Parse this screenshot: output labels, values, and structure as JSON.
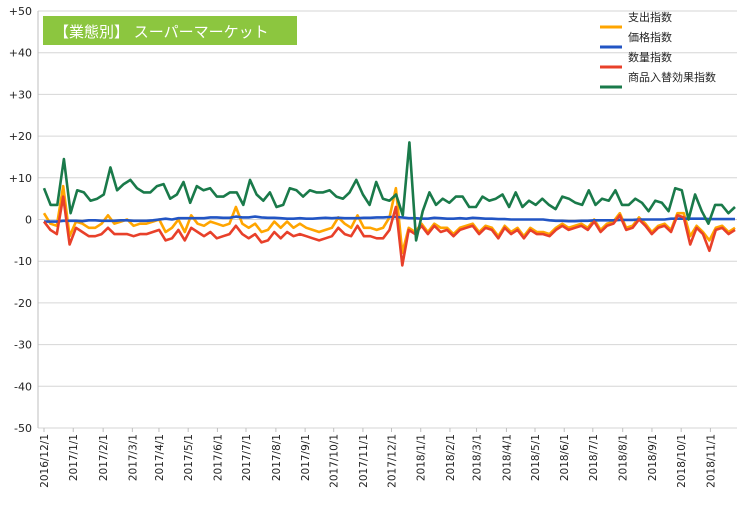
{
  "chart_data": {
    "type": "line",
    "title": "【業態別】 スーパーマーケット",
    "title_bg_color": "#8cc63f",
    "ylim": [
      -50,
      50
    ],
    "yticks": [
      "+50",
      "+40",
      "+30",
      "+20",
      "+10",
      "0",
      "-10",
      "-20",
      "-30",
      "-40",
      "-50"
    ],
    "ytick_values": [
      50,
      40,
      30,
      20,
      10,
      0,
      -10,
      -20,
      -30,
      -40,
      -50
    ],
    "xlabel": "",
    "ylabel": "",
    "x_tick_labels": [
      "2016/12/1",
      "2017/1/1",
      "2017/2/1",
      "2017/3/1",
      "2017/4/1",
      "2017/5/1",
      "2017/6/1",
      "2017/7/1",
      "2017/8/1",
      "2017/9/1",
      "2017/10/1",
      "2017/11/1",
      "2017/12/1",
      "2018/1/1",
      "2018/2/1",
      "2018/3/1",
      "2018/4/1",
      "2018/5/1",
      "2018/6/1",
      "2018/7/1",
      "2018/8/1",
      "2018/9/1",
      "2018/10/1",
      "2018/11/1"
    ],
    "x_tick_weeks": [
      0,
      4.4,
      8.9,
      13.3,
      17.3,
      21.7,
      26.1,
      30.4,
      34.9,
      39.3,
      43.6,
      48.0,
      52.3,
      56.7,
      61.1,
      65.1,
      69.6,
      73.9,
      78.3,
      82.6,
      87.1,
      91.5,
      95.9,
      100.3
    ],
    "x_max_week": 104,
    "grid": true,
    "legend_position": "top-right",
    "series": [
      {
        "name": "支出指数",
        "color": "#ffa500",
        "values": [
          1.5,
          -1,
          -1.5,
          8,
          -4,
          -0.5,
          -1,
          -2,
          -2,
          -1,
          1,
          -1,
          -0.5,
          0,
          -1.5,
          -1,
          -1,
          -0.5,
          0,
          -3,
          -2,
          0,
          -3,
          1,
          -1,
          -1.5,
          -0.5,
          -1,
          -1.5,
          -1,
          3,
          -1,
          -2,
          -1,
          -3,
          -2.5,
          -0.5,
          -2,
          -0.5,
          -2,
          -1,
          -2,
          -2.5,
          -3,
          -2.5,
          -2,
          0.5,
          -1,
          -2,
          1,
          -2,
          -2,
          -2.5,
          -2,
          0.5,
          7.5,
          -8,
          -2,
          -3,
          -1,
          -3,
          -1,
          -2,
          -2,
          -3.5,
          -2,
          -1.5,
          -1,
          -3,
          -1.5,
          -2,
          -4,
          -1.5,
          -3,
          -2,
          -4,
          -2,
          -3,
          -3,
          -3.5,
          -2,
          -1,
          -2,
          -1.5,
          -1,
          -2,
          0,
          -2.5,
          -1,
          -0.5,
          1.5,
          -2,
          -1.5,
          0.5,
          -1,
          -3,
          -1.5,
          -1,
          -2.5,
          1.5,
          1.5,
          -4,
          -1.5,
          -3,
          -5,
          -2,
          -1.5,
          -3,
          -2
        ]
      },
      {
        "name": "価格指数",
        "color": "#2255c4",
        "values": [
          -0.5,
          -0.5,
          -0.5,
          -0.3,
          -0.3,
          -0.3,
          -0.4,
          -0.2,
          -0.2,
          -0.3,
          -0.3,
          -0.3,
          -0.2,
          -0.2,
          -0.3,
          -0.3,
          -0.3,
          -0.2,
          0,
          0.2,
          0,
          0.3,
          0.3,
          0.3,
          0.3,
          0.3,
          0.5,
          0.5,
          0.4,
          0.4,
          0.7,
          0.5,
          0.5,
          0.7,
          0.5,
          0.4,
          0.4,
          0.3,
          0.2,
          0.2,
          0.3,
          0.2,
          0.2,
          0.3,
          0.4,
          0.3,
          0.4,
          0.3,
          0.3,
          0.3,
          0.4,
          0.4,
          0.5,
          0.5,
          0.6,
          0.6,
          0.5,
          0.3,
          0.3,
          0.2,
          0.2,
          0.4,
          0.3,
          0.2,
          0.2,
          0.3,
          0.2,
          0.4,
          0.3,
          0.2,
          0.2,
          0.1,
          0.1,
          0,
          0,
          0,
          0,
          0,
          0,
          -0.2,
          -0.3,
          -0.3,
          -0.4,
          -0.4,
          -0.3,
          -0.3,
          -0.2,
          -0.2,
          -0.2,
          -0.2,
          -0.1,
          -0.1,
          -0.1,
          0,
          0,
          0,
          0,
          0,
          0.2,
          0.2,
          0.2,
          0.2,
          0.2,
          0.2,
          0.1,
          0.1,
          0.1,
          0.1,
          0.1
        ]
      },
      {
        "name": "数量指数",
        "color": "#e8402a",
        "values": [
          -0.5,
          -2.5,
          -3.5,
          5.5,
          -6,
          -2,
          -3,
          -4,
          -4,
          -3.5,
          -2,
          -3.5,
          -3.5,
          -3.5,
          -4,
          -3.5,
          -3.5,
          -3,
          -2.5,
          -5,
          -4.5,
          -2.5,
          -5,
          -2,
          -3,
          -4,
          -3,
          -4.5,
          -4,
          -3.5,
          -1.5,
          -3.5,
          -4.5,
          -3.5,
          -5.5,
          -5,
          -3,
          -4.5,
          -3,
          -4,
          -3.5,
          -4,
          -4.5,
          -5,
          -4.5,
          -4,
          -2,
          -3.5,
          -4,
          -1.5,
          -4,
          -4,
          -4.5,
          -4.5,
          -2.5,
          3,
          -11,
          -2.5,
          -3.5,
          -1.5,
          -3.5,
          -1.5,
          -3,
          -2.5,
          -4,
          -2.5,
          -2,
          -1.5,
          -3.5,
          -2,
          -2.5,
          -4.5,
          -2,
          -3.5,
          -2.5,
          -4.5,
          -2.5,
          -3.5,
          -3.5,
          -4,
          -2.5,
          -1.5,
          -2.5,
          -2,
          -1.5,
          -2.5,
          -0.5,
          -3,
          -1.5,
          -1,
          1,
          -2.5,
          -2,
          0,
          -1.5,
          -3.5,
          -2,
          -1.5,
          -3,
          1,
          0.5,
          -6,
          -2,
          -3.5,
          -7.5,
          -2.5,
          -2,
          -3.5,
          -2.5
        ]
      },
      {
        "name": "商品入替効果指数",
        "color": "#1a7a4a",
        "values": [
          7.5,
          3.5,
          3.5,
          14.5,
          1.5,
          7,
          6.5,
          4.5,
          5,
          6,
          12.5,
          7,
          8.5,
          9.5,
          7.5,
          6.5,
          6.5,
          8,
          8.5,
          5,
          6,
          9,
          4,
          8,
          7,
          7.5,
          5.5,
          5.5,
          6.5,
          6.5,
          3.5,
          9.5,
          6,
          4.5,
          6.5,
          3,
          3.5,
          7.5,
          7,
          5.5,
          7,
          6.5,
          6.5,
          7,
          5.5,
          5,
          6.5,
          9.5,
          6,
          3.5,
          9,
          5,
          4.5,
          6,
          1,
          18.5,
          -5,
          2,
          6.5,
          3.5,
          5,
          4,
          5.5,
          5.5,
          3,
          3,
          5.5,
          4.5,
          5,
          6,
          3,
          6.5,
          3,
          4.5,
          3.5,
          5,
          3.5,
          2.5,
          5.5,
          5,
          4,
          3.5,
          7,
          3.5,
          5,
          4.5,
          7,
          3.5,
          3.5,
          5,
          4,
          2,
          4.5,
          4,
          2,
          7.5,
          7,
          0,
          6,
          2,
          -1,
          3.5,
          3.5,
          1.5,
          3
        ]
      }
    ]
  }
}
